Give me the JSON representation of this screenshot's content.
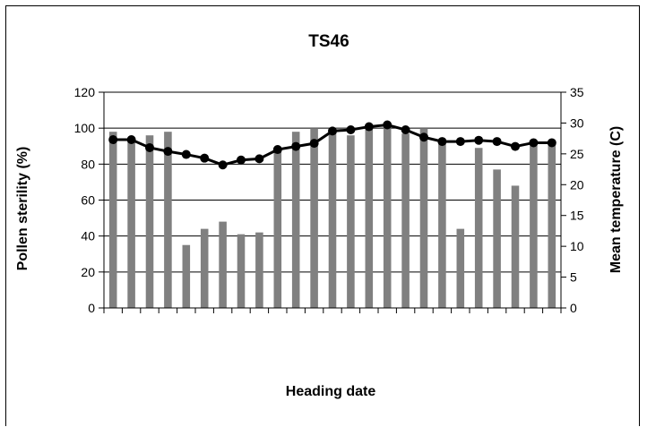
{
  "chart_data": {
    "type": "bar+line",
    "title": "TS46",
    "xlabel": "Heading date",
    "ylabel_left": "Pollen sterility (%)",
    "ylabel_right": "Mean temperature (C)",
    "ylim_left": [
      0,
      120
    ],
    "ylim_right": [
      0,
      35
    ],
    "yticks_left": [
      0,
      20,
      40,
      60,
      80,
      100,
      120
    ],
    "yticks_right": [
      0,
      5,
      10,
      15,
      20,
      25,
      30,
      35
    ],
    "grid": "horizontal",
    "legend": "none",
    "x_count": 25,
    "series": [
      {
        "type": "bar",
        "axis": "left",
        "color": "#808080",
        "values": [
          98,
          93,
          96,
          98,
          35,
          44,
          48,
          41,
          42,
          88,
          98,
          100,
          98,
          96,
          100,
          100,
          97,
          100,
          92,
          44,
          89,
          77,
          68,
          92,
          92
        ]
      },
      {
        "type": "line",
        "axis": "right",
        "color": "#000000",
        "values": [
          27.3,
          27.3,
          26.0,
          25.4,
          24.9,
          24.3,
          23.2,
          24.0,
          24.2,
          25.7,
          26.2,
          26.7,
          28.7,
          28.9,
          29.4,
          29.7,
          28.9,
          27.7,
          27.0,
          27.0,
          27.2,
          27.0,
          26.2,
          26.8,
          26.8
        ]
      }
    ]
  },
  "colors": {
    "bar": "#808080",
    "line": "#000000",
    "frame": "#000000"
  }
}
